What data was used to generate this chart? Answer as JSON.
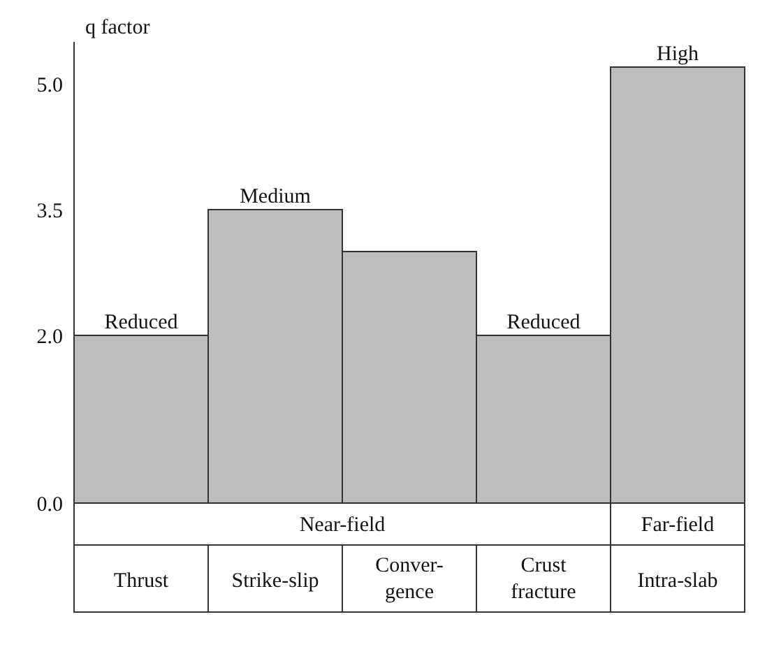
{
  "chart_data": {
    "type": "bar",
    "ylabel": "q factor",
    "categories": [
      "Thrust",
      "Strike-slip",
      "Conver-gence",
      "Crust fracture",
      "Intra-slab"
    ],
    "values": [
      2.0,
      3.5,
      3.0,
      2.0,
      5.2
    ],
    "color": "#bdbdbd",
    "ylim": [
      0,
      5.5
    ],
    "yticks": [
      {
        "value": 0,
        "label": "0.0"
      },
      {
        "value": 2,
        "label": "2.0"
      },
      {
        "value": 3.5,
        "label": "3.5"
      },
      {
        "value": 5,
        "label": "5.0"
      }
    ],
    "annotations": [
      {
        "text": "Reduced",
        "x": "Thrust",
        "y": 2.0
      },
      {
        "text": "Medium",
        "x": "Strike-slip",
        "y": 3.5
      },
      {
        "text": "Reduced",
        "x": "Crust fracture",
        "y": 2.0
      },
      {
        "text": "High",
        "x": "Intra-slab",
        "y": 5.2
      },
      "Near-field",
      "Far-field"
    ]
  }
}
